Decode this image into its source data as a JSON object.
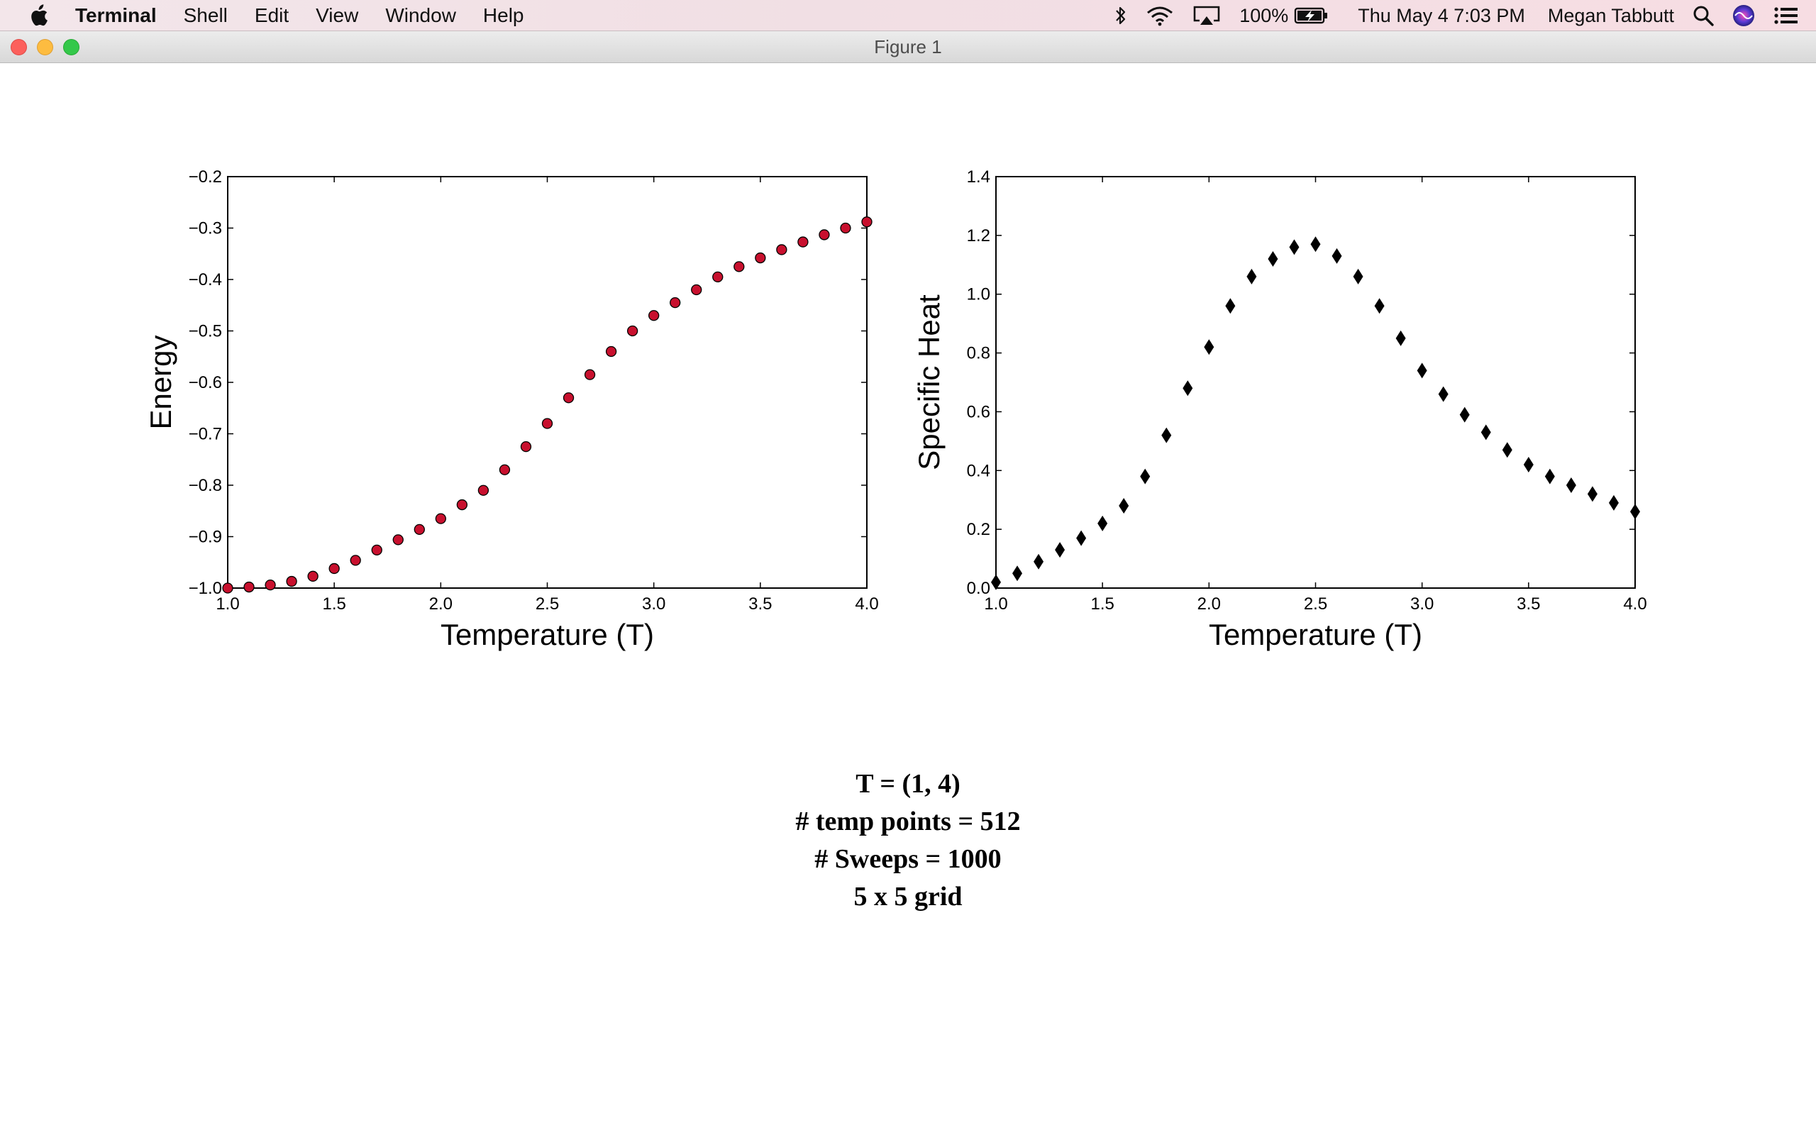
{
  "menubar": {
    "apple_icon": "apple-logo-icon",
    "items": [
      "Terminal",
      "Shell",
      "Edit",
      "View",
      "Window",
      "Help"
    ],
    "status": {
      "battery_percent": "100%",
      "datetime": "Thu May 4  7:03 PM",
      "user": "Megan Tabbutt"
    }
  },
  "window": {
    "title": "Figure 1"
  },
  "chart_data": [
    {
      "type": "scatter",
      "title": "",
      "xlabel": "Temperature (T)",
      "ylabel": "Energy",
      "xlim": [
        1.0,
        4.0
      ],
      "ylim": [
        -1.0,
        -0.2
      ],
      "xticks": [
        "1.0",
        "1.5",
        "2.0",
        "2.5",
        "3.0",
        "3.5",
        "4.0"
      ],
      "yticks": [
        "−1.0",
        "−0.9",
        "−0.8",
        "−0.7",
        "−0.6",
        "−0.5",
        "−0.4",
        "−0.3",
        "−0.2"
      ],
      "marker": "circle",
      "color": "#c8102e",
      "edge_color": "#000000",
      "grid": false,
      "x": [
        1.0,
        1.1,
        1.2,
        1.3,
        1.4,
        1.5,
        1.6,
        1.7,
        1.8,
        1.9,
        2.0,
        2.1,
        2.2,
        2.3,
        2.4,
        2.5,
        2.6,
        2.7,
        2.8,
        2.9,
        3.0,
        3.1,
        3.2,
        3.3,
        3.4,
        3.5,
        3.6,
        3.7,
        3.8,
        3.9,
        4.0
      ],
      "y": [
        -1.0,
        -0.998,
        -0.994,
        -0.987,
        -0.977,
        -0.962,
        -0.946,
        -0.926,
        -0.906,
        -0.886,
        -0.865,
        -0.838,
        -0.81,
        -0.77,
        -0.725,
        -0.68,
        -0.63,
        -0.585,
        -0.54,
        -0.5,
        -0.47,
        -0.445,
        -0.42,
        -0.395,
        -0.375,
        -0.358,
        -0.342,
        -0.327,
        -0.313,
        -0.3,
        -0.288
      ]
    },
    {
      "type": "scatter",
      "title": "",
      "xlabel": "Temperature (T)",
      "ylabel": "Specific Heat",
      "xlim": [
        1.0,
        4.0
      ],
      "ylim": [
        0.0,
        1.4
      ],
      "xticks": [
        "1.0",
        "1.5",
        "2.0",
        "2.5",
        "3.0",
        "3.5",
        "4.0"
      ],
      "yticks": [
        "0.0",
        "0.2",
        "0.4",
        "0.6",
        "0.8",
        "1.0",
        "1.2",
        "1.4"
      ],
      "marker": "diamond",
      "color": "#000000",
      "grid": false,
      "x": [
        1.0,
        1.1,
        1.2,
        1.3,
        1.4,
        1.5,
        1.6,
        1.7,
        1.8,
        1.9,
        2.0,
        2.1,
        2.2,
        2.3,
        2.4,
        2.5,
        2.6,
        2.7,
        2.8,
        2.9,
        3.0,
        3.1,
        3.2,
        3.3,
        3.4,
        3.5,
        3.6,
        3.7,
        3.8,
        3.9,
        4.0
      ],
      "y": [
        0.02,
        0.05,
        0.09,
        0.13,
        0.17,
        0.22,
        0.28,
        0.38,
        0.52,
        0.68,
        0.82,
        0.96,
        1.06,
        1.12,
        1.16,
        1.17,
        1.13,
        1.06,
        0.96,
        0.85,
        0.74,
        0.66,
        0.59,
        0.53,
        0.47,
        0.42,
        0.38,
        0.35,
        0.32,
        0.29,
        0.26
      ]
    }
  ],
  "caption": {
    "lines": [
      "T = (1, 4)",
      "#  temp points = 512",
      "#  Sweeps = 1000",
      "5 x 5 grid"
    ]
  }
}
